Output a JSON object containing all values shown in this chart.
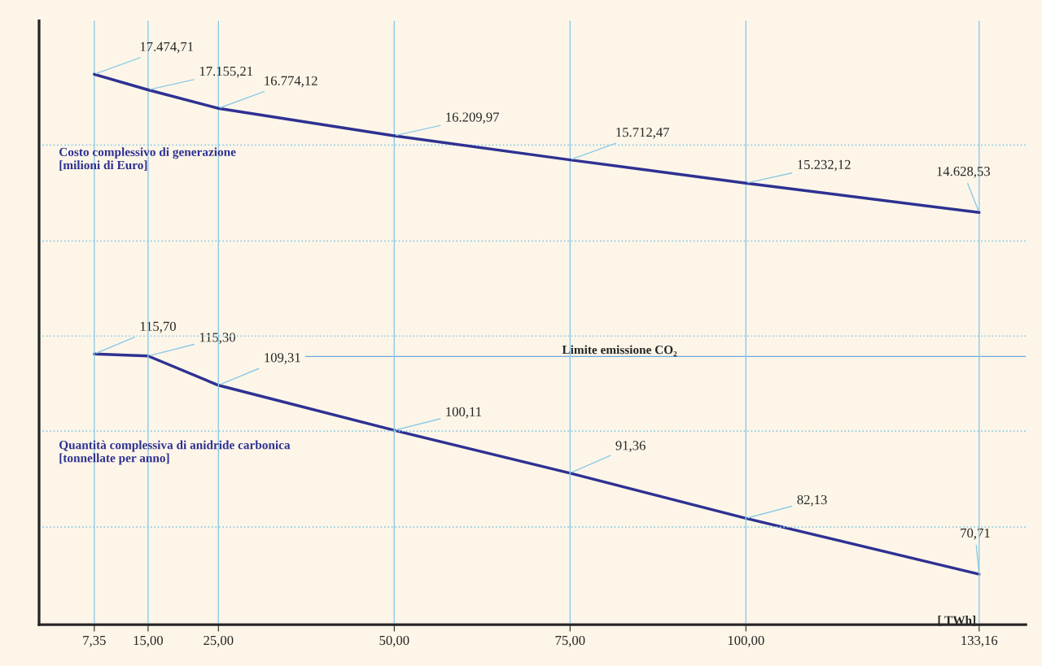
{
  "chart_data": {
    "type": "line",
    "xlabel": "[ TWh]",
    "x": [
      7.35,
      15,
      25,
      50,
      75,
      100,
      133.16
    ],
    "xlim": [
      -0.5,
      139.8
    ],
    "xticks": [
      {
        "value": 7.35,
        "label": "7,35"
      },
      {
        "value": 15,
        "label": "15,00"
      },
      {
        "value": 25,
        "label": "25,00"
      },
      {
        "value": 50,
        "label": "50,00"
      },
      {
        "value": 75,
        "label": "75,00"
      },
      {
        "value": 100,
        "label": "100,00"
      },
      {
        "value": 133.16,
        "label": "133,16"
      }
    ],
    "ylim": [
      6140,
      18580
    ],
    "yticks": [
      {
        "value": 8150,
        "label": null
      },
      {
        "value": 10126,
        "label": null
      },
      {
        "value": 12084,
        "label": null
      },
      {
        "value": 14043,
        "label": null
      },
      {
        "value": 16018,
        "label": null
      }
    ],
    "y2lim": [
      60.4,
      183.8
    ],
    "tick_labels": "x",
    "grid": true,
    "marker": "none",
    "line_style": "solid",
    "series": [
      {
        "name": "Costo complessivo di generazione\n[milioni di Euro]",
        "color": "#2e3192",
        "values": [
          17474.71,
          17155.21,
          16774.12,
          16209.97,
          15712.47,
          15232.12,
          14628.53
        ],
        "value_labels": [
          "17.474,71",
          "17.155,21",
          "16.774,12",
          "16.209,97",
          "15.712,47",
          "15.232,12",
          "14.628,53"
        ]
      },
      {
        "name": "Quantità complessiva di anidride carbonica\n[tonnellate per anno]",
        "color": "#2e3192",
        "axis": "y2",
        "values": [
          115.7,
          115.3,
          109.31,
          100.11,
          91.36,
          82.13,
          70.71
        ],
        "value_labels": [
          "115,70",
          "115,30",
          "109,31",
          "100,11",
          "91,36",
          "82,13",
          "70,71"
        ]
      }
    ],
    "ref_lines": [
      {
        "axis": "y2",
        "value": 115.2,
        "label": "Limite emissione CO₂",
        "color": "#6fa8dc",
        "line_style": "solid"
      }
    ]
  }
}
